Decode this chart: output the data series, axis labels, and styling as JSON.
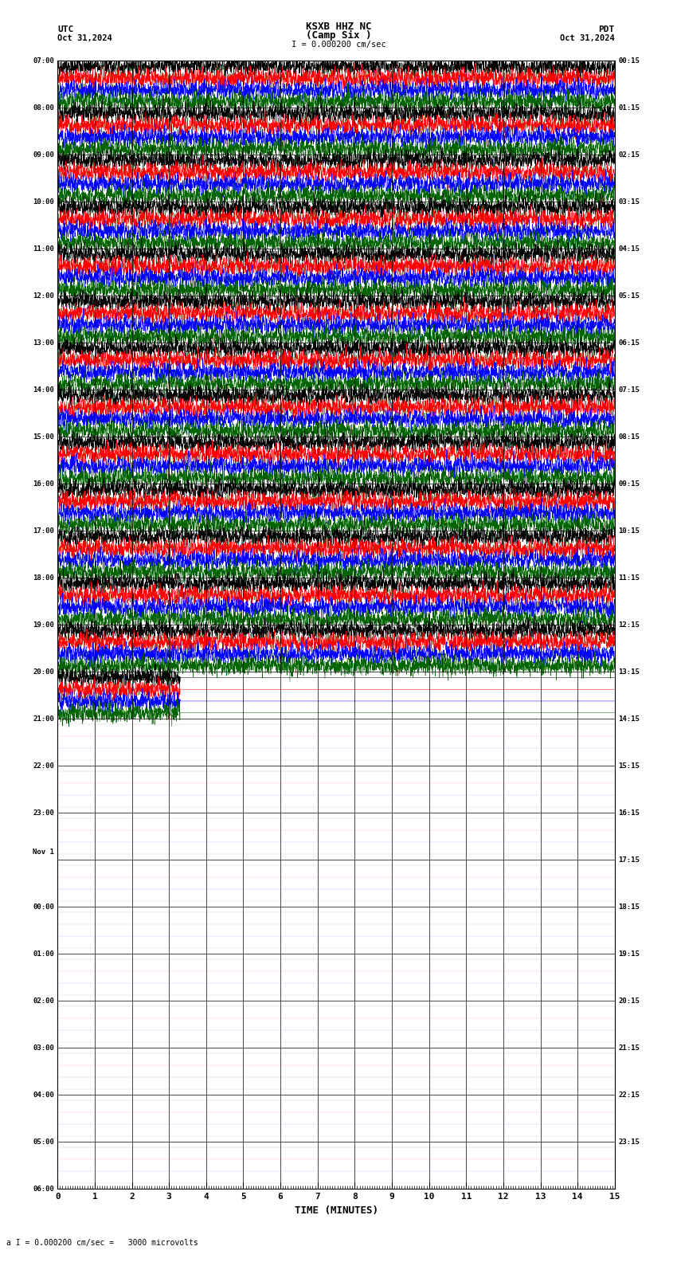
{
  "title_line1": "KSXB HHZ NC",
  "title_line2": "(Camp Six )",
  "scale_label": "I = 0.000200 cm/sec",
  "left_label_top": "UTC",
  "left_label_date": "Oct 31,2024",
  "right_label_top": "PDT",
  "right_label_date": "Oct 31,2024",
  "bottom_label": "a I = 0.000200 cm/sec =   3000 microvolts",
  "xlabel": "TIME (MINUTES)",
  "left_times_utc": [
    "07:00",
    "08:00",
    "09:00",
    "10:00",
    "11:00",
    "12:00",
    "13:00",
    "14:00",
    "15:00",
    "16:00",
    "17:00",
    "18:00",
    "19:00",
    "20:00",
    "21:00",
    "22:00",
    "23:00",
    "Nov 1",
    "00:00",
    "01:00",
    "02:00",
    "03:00",
    "04:00",
    "05:00",
    "06:00"
  ],
  "right_times_pdt": [
    "00:15",
    "01:15",
    "02:15",
    "03:15",
    "04:15",
    "05:15",
    "06:15",
    "07:15",
    "08:15",
    "09:15",
    "10:15",
    "11:15",
    "12:15",
    "13:15",
    "14:15",
    "15:15",
    "16:15",
    "17:15",
    "18:15",
    "19:15",
    "20:15",
    "21:15",
    "22:15",
    "23:15"
  ],
  "n_rows": 24,
  "n_active_rows": 14,
  "colors": [
    "#000000",
    "#ff0000",
    "#0000ff",
    "#006400"
  ],
  "bg_color": "#ffffff",
  "xlim": [
    0,
    15
  ],
  "xticks": [
    0,
    1,
    2,
    3,
    4,
    5,
    6,
    7,
    8,
    9,
    10,
    11,
    12,
    13,
    14,
    15
  ],
  "figsize": [
    8.5,
    15.84
  ],
  "dpi": 100
}
